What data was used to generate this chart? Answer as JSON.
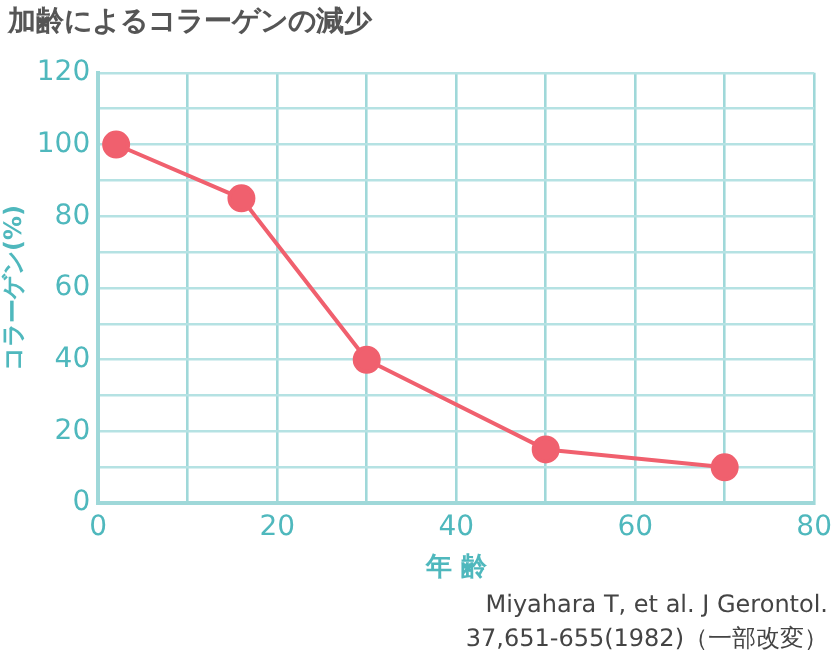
{
  "chart_data": {
    "type": "line",
    "title": "加齢によるコラーゲンの減少",
    "xlabel": "年 齢",
    "ylabel": "コラーゲン(%)",
    "x": [
      2,
      16,
      30,
      50,
      70
    ],
    "series": [
      {
        "color": "#f0606e",
        "values": [
          100,
          85,
          40,
          15,
          10
        ]
      }
    ],
    "xlim": [
      0,
      80
    ],
    "ylim": [
      0,
      120
    ],
    "xticks": [
      0,
      {
        "value": 10,
        "label": null
      },
      20,
      {
        "value": 30,
        "label": null
      },
      40,
      {
        "value": 50,
        "label": null
      },
      60,
      {
        "value": 70,
        "label": null
      },
      80
    ],
    "yticks": [
      0,
      {
        "value": 10,
        "label": null
      },
      20,
      {
        "value": 30,
        "label": null
      },
      40,
      {
        "value": 50,
        "label": null
      },
      60,
      {
        "value": 70,
        "label": null
      },
      80,
      {
        "value": 90,
        "label": null
      },
      100,
      {
        "value": 110,
        "label": null
      },
      120
    ],
    "grid": true,
    "legend": false,
    "marker": "circle",
    "line_style": "solid",
    "annotations": [
      "Miyahara T, et al. J Gerontol.",
      "37,651-655(1982)（一部改変）"
    ]
  }
}
